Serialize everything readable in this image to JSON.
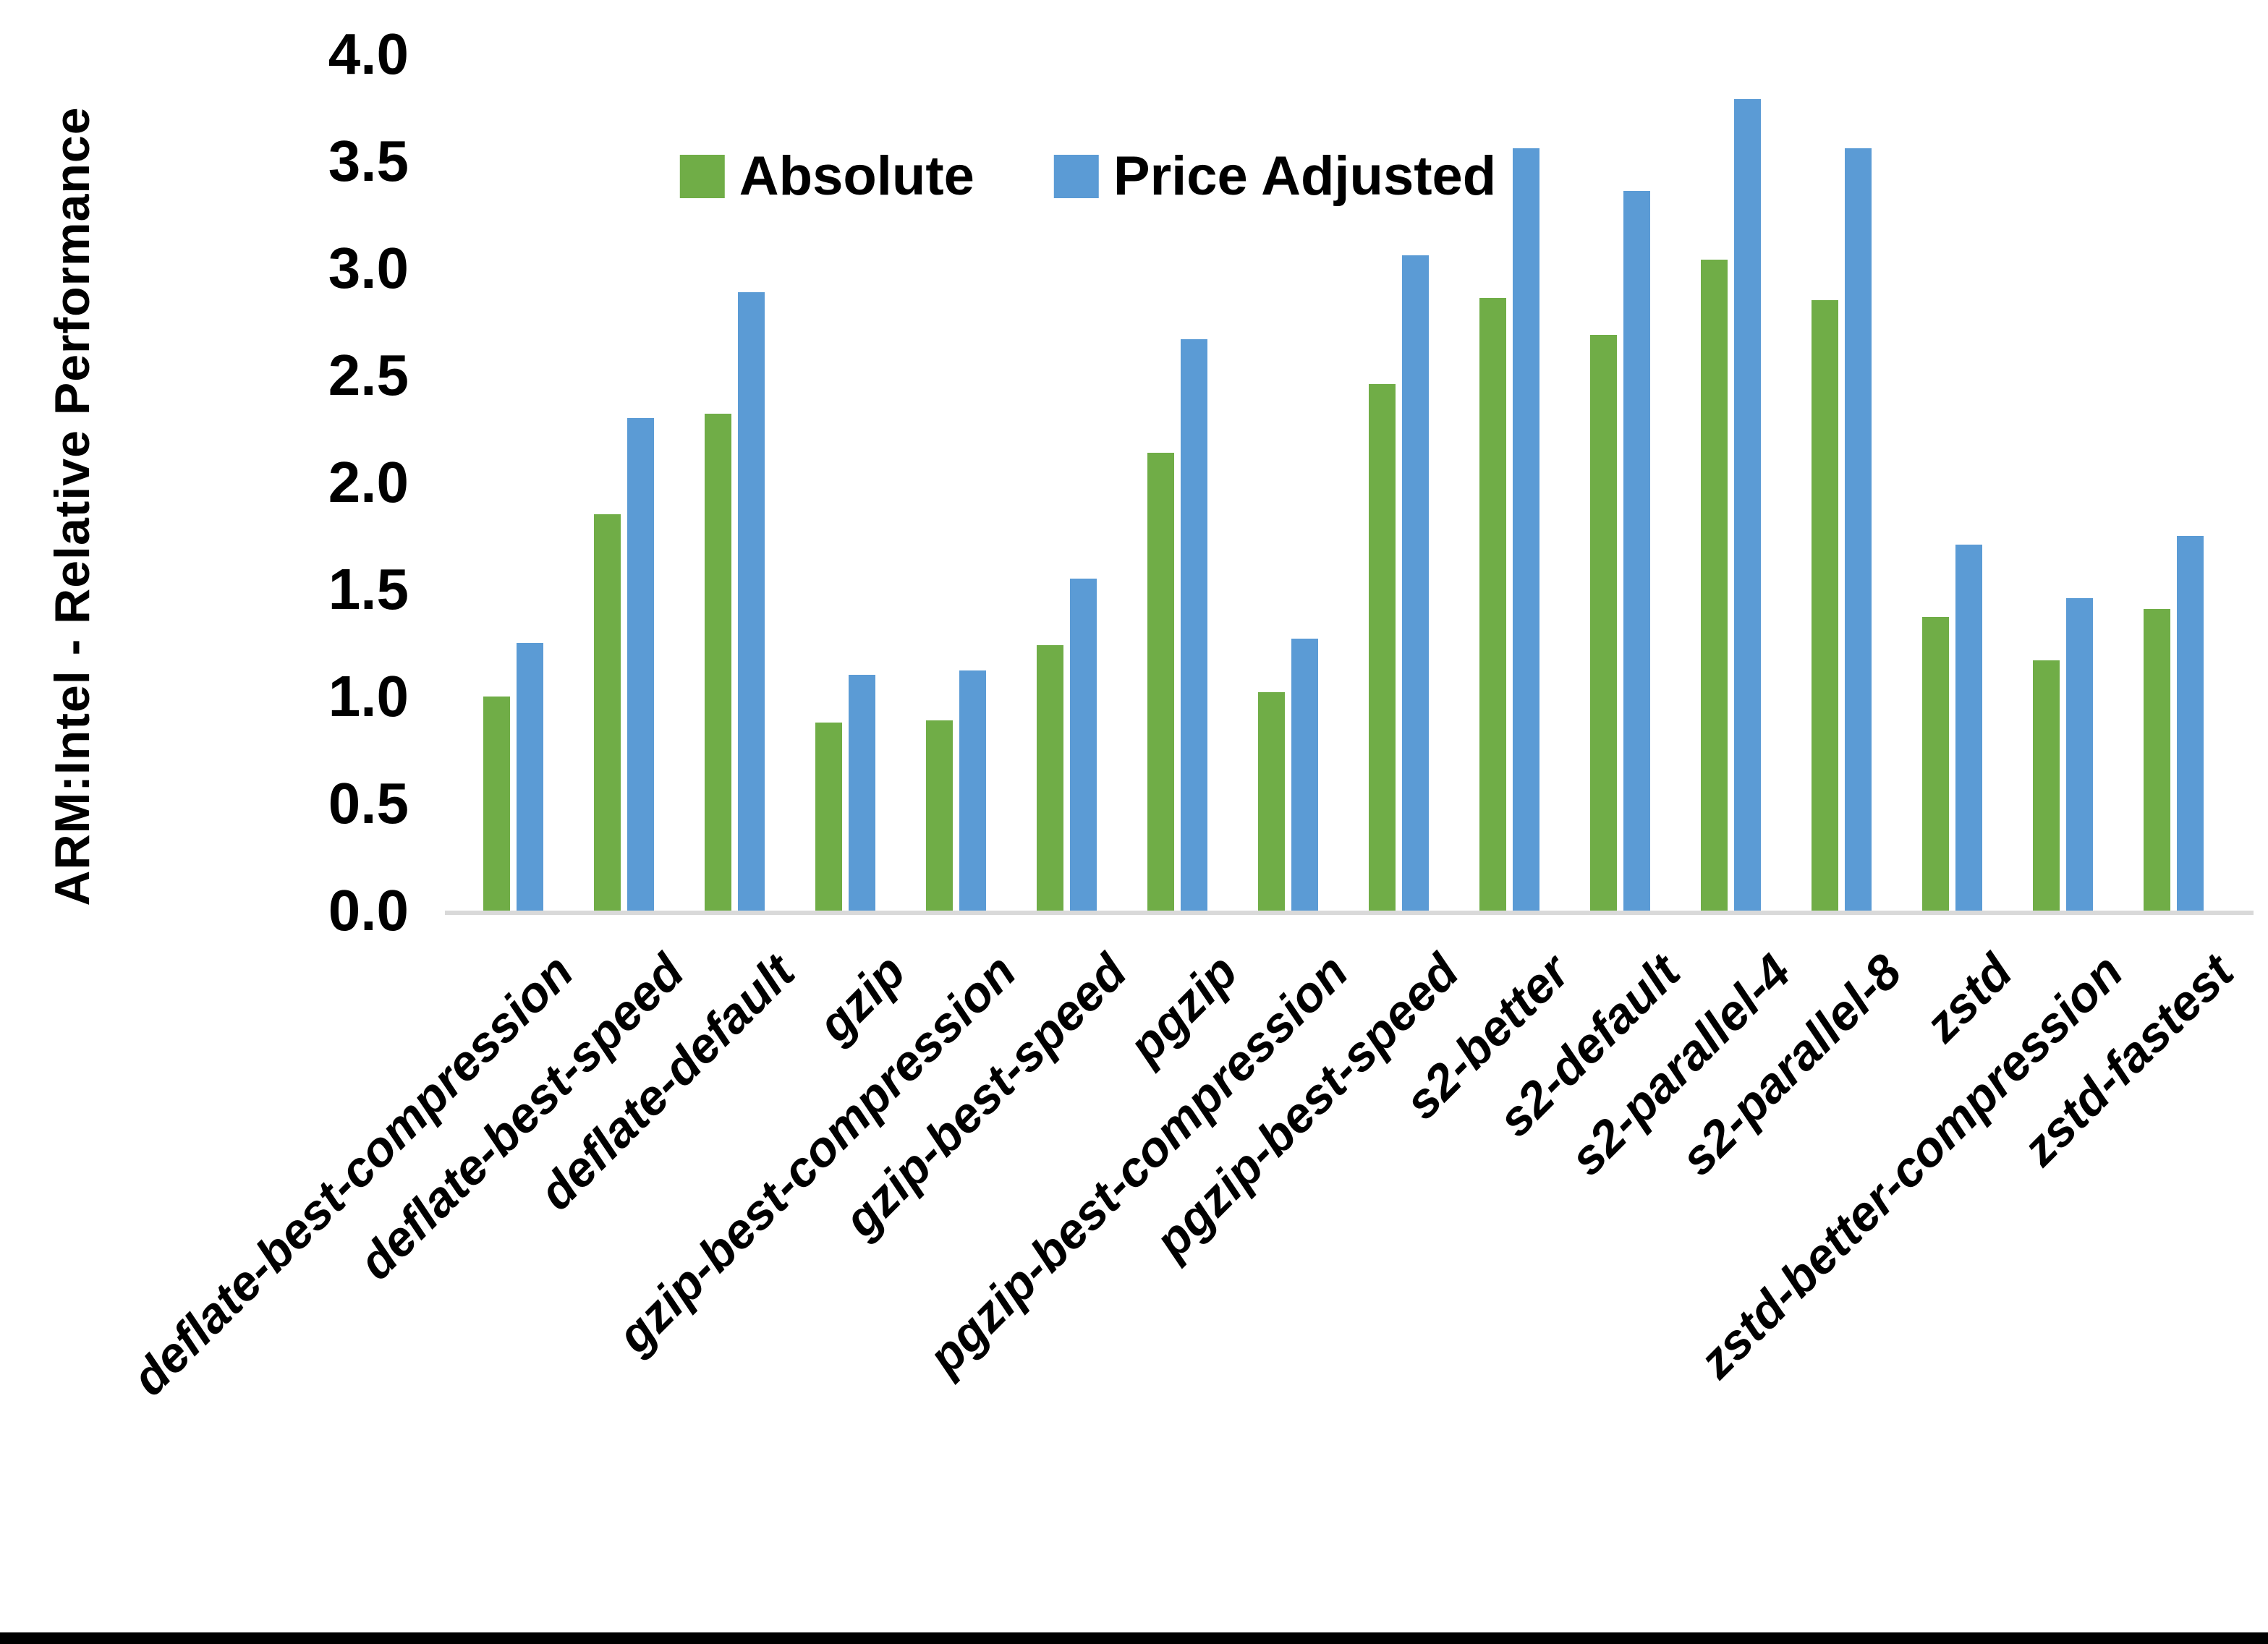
{
  "y_axis": {
    "title": "ARM:Intel - Relative Performance",
    "min": 0.0,
    "max": 4.0,
    "step": 0.5,
    "ticks": [
      "0.0",
      "0.5",
      "1.0",
      "1.5",
      "2.0",
      "2.5",
      "3.0",
      "3.5",
      "4.0"
    ]
  },
  "legend": {
    "position": "top-center",
    "items": [
      {
        "label": "Absolute",
        "color": "#70AD47"
      },
      {
        "label": "Price Adjusted",
        "color": "#5B9BD5"
      }
    ]
  },
  "colors": {
    "axis_line": "#d9d9d9",
    "text": "#000000",
    "background": "#ffffff",
    "frame_bottom": "#000000"
  },
  "chart_data": {
    "type": "bar",
    "title": "",
    "xlabel": "",
    "ylabel": "ARM:Intel - Relative Performance",
    "ylim": [
      0.0,
      4.0
    ],
    "ytick_step": 0.5,
    "grid": false,
    "legend_position": "top-center",
    "categories": [
      "deflate-best-compression",
      "deflate-best-speed",
      "deflate-default",
      "gzip",
      "gzip-best-compression",
      "gzip-best-speed",
      "pgzip",
      "pgzip-best-compression",
      "pgzip-best-speed",
      "s2-better",
      "s2-default",
      "s2-parallel-4",
      "s2-parallel-8",
      "zstd",
      "zstd-better-compression",
      "zstd-fastest"
    ],
    "series": [
      {
        "name": "Absolute",
        "color": "#70AD47",
        "values": [
          1.0,
          1.85,
          2.32,
          0.88,
          0.89,
          1.24,
          2.14,
          1.02,
          2.46,
          2.86,
          2.69,
          3.04,
          2.85,
          1.37,
          1.17,
          1.41
        ]
      },
      {
        "name": "Price Adjusted",
        "color": "#5B9BD5",
        "values": [
          1.25,
          2.3,
          2.89,
          1.1,
          1.12,
          1.55,
          2.67,
          1.27,
          3.06,
          3.56,
          3.36,
          3.79,
          3.56,
          1.71,
          1.46,
          1.75
        ]
      }
    ]
  }
}
